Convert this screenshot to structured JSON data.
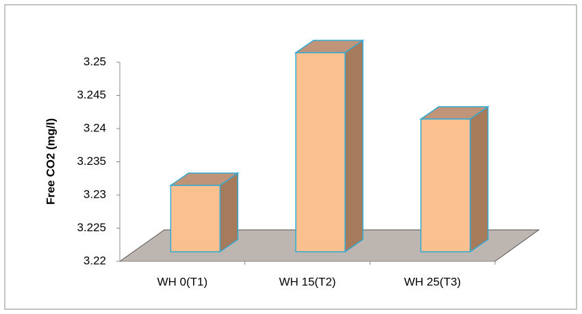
{
  "chart_data": {
    "type": "bar3d",
    "y_label": "Free CO2 (mg/l)",
    "categories": [
      "WH 0(T1)",
      "WH 15(T2)",
      "WH 25(T3)"
    ],
    "values": [
      3.23,
      3.25,
      3.24
    ],
    "color": "#fac090",
    "ylim": [
      3.22,
      3.25
    ],
    "yticks": [
      3.22,
      3.225,
      3.23,
      3.235,
      3.24,
      3.245,
      3.25
    ],
    "grid": false
  }
}
